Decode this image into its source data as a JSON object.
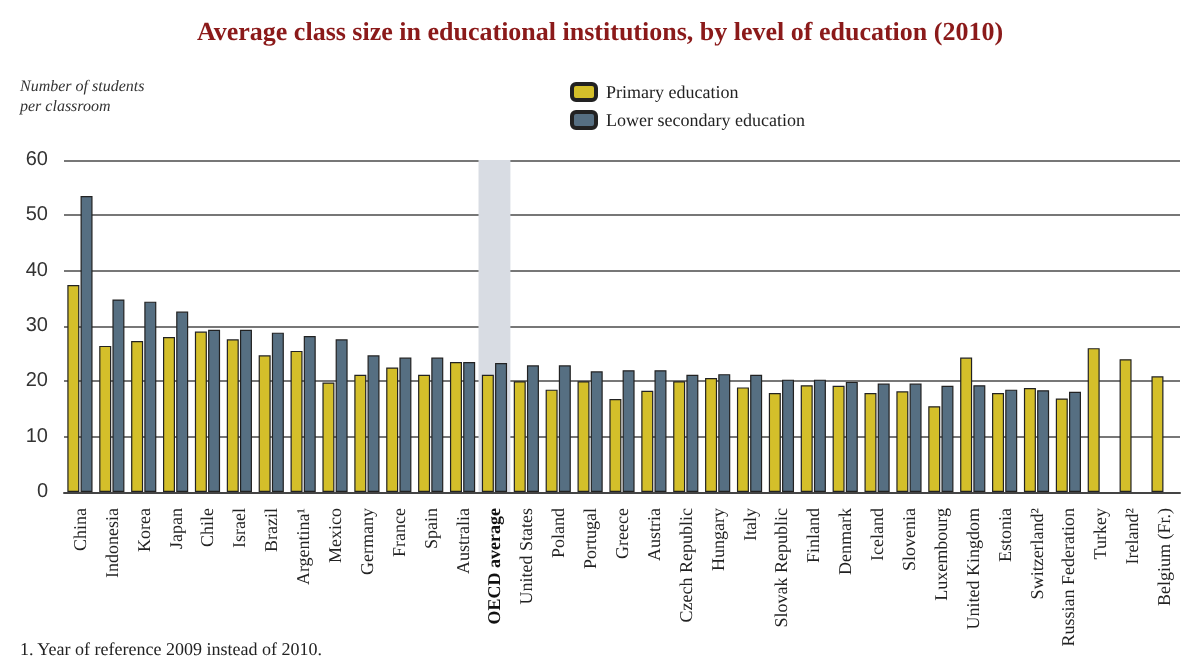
{
  "chart_data": {
    "type": "bar",
    "title": "Average class size in educational institutions, by level of education (2010)",
    "ylabel": "Number of students per classroom",
    "categories": [
      "China",
      "Indonesia",
      "Korea",
      "Japan",
      "Chile",
      "Israel",
      "Brazil",
      "Argentina¹",
      "Mexico",
      "Germany",
      "France",
      "Spain",
      "Australia",
      "OECD average",
      "United States",
      "Poland",
      "Portugal",
      "Greece",
      "Austria",
      "Czech Republic",
      "Hungary",
      "Italy",
      "Slovak Republic",
      "Finland",
      "Denmark",
      "Iceland",
      "Slovenia",
      "Luxembourg",
      "United Kingdom",
      "Estonia",
      "Switzerland²",
      "Russian Federation",
      "Turkey",
      "Ireland²",
      "Belgium (Fr.)"
    ],
    "series": [
      {
        "name": "Primary education",
        "color": "#d4bf2a",
        "values": [
          37.4,
          26.4,
          27.3,
          28.0,
          29.0,
          27.6,
          24.7,
          25.5,
          19.8,
          21.2,
          22.5,
          21.2,
          23.5,
          21.2,
          20.0,
          18.5,
          20.0,
          16.8,
          18.3,
          20.0,
          20.6,
          18.9,
          17.9,
          19.3,
          19.2,
          17.9,
          18.2,
          15.5,
          24.3,
          17.9,
          18.8,
          16.9,
          26.0,
          24.0,
          20.9
        ]
      },
      {
        "name": "Lower secondary education",
        "color": "#566f82",
        "values": [
          53.5,
          34.8,
          34.4,
          32.6,
          29.3,
          29.3,
          28.8,
          28.2,
          27.6,
          24.7,
          24.3,
          24.3,
          23.5,
          23.3,
          22.9,
          22.9,
          21.8,
          22.0,
          22.0,
          21.2,
          21.3,
          21.2,
          20.3,
          20.3,
          19.9,
          19.6,
          19.6,
          19.2,
          19.3,
          18.5,
          18.4,
          18.1,
          null,
          null,
          null
        ]
      }
    ],
    "ylim": [
      0,
      60
    ],
    "yticks": [
      0,
      10,
      20,
      30,
      40,
      50,
      60
    ],
    "grid": "y",
    "legend": "top",
    "bands": [
      {
        "axis": "x",
        "from": "OECD average",
        "to": "OECD average",
        "color": "#d8dce3"
      }
    ],
    "annotations": [
      "1. Year of reference 2009 instead of 2010."
    ]
  }
}
